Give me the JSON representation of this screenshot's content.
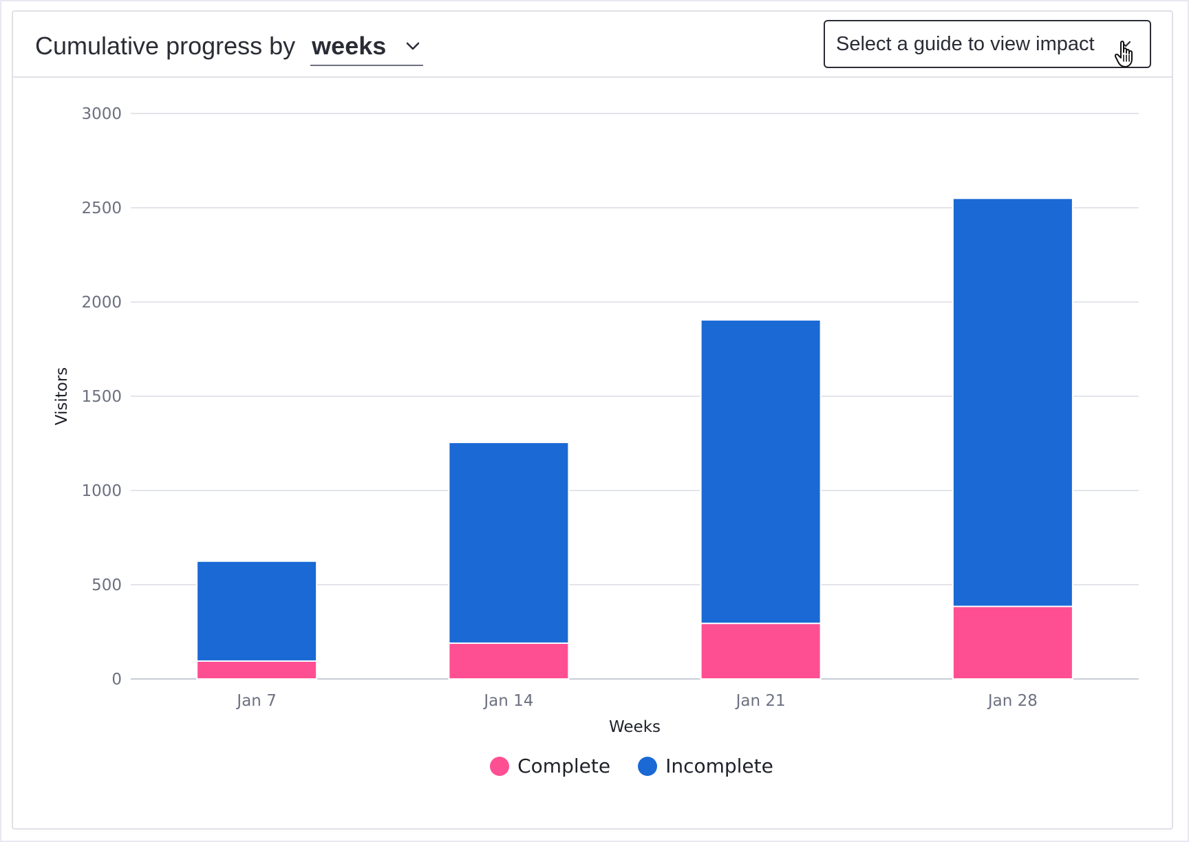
{
  "header": {
    "title_prefix": "Cumulative progress by ",
    "period_value": "weeks",
    "guide_placeholder": "Select a guide to view impact"
  },
  "icons": {
    "period_dropdown": "chevron-down-icon",
    "guide_dropdown": "chevron-down-icon",
    "cursor": "hand-pointer-icon"
  },
  "colors": {
    "complete": "#ff4f93",
    "incomplete": "#1a69d4"
  },
  "chart_data": {
    "type": "bar",
    "stacked": true,
    "title": "Cumulative progress by weeks",
    "xlabel": "Weeks",
    "ylabel": "Visitors",
    "categories": [
      "Jan 7",
      "Jan 14",
      "Jan 21",
      "Jan 28"
    ],
    "series": [
      {
        "name": "Complete",
        "values": [
          95,
          190,
          295,
          385
        ],
        "color": "#ff4f93"
      },
      {
        "name": "Incomplete",
        "values": [
          530,
          1065,
          1610,
          2165
        ],
        "color": "#1a69d4"
      }
    ],
    "ylim": [
      0,
      3000
    ],
    "yticks": [
      0,
      500,
      1000,
      1500,
      2000,
      2500,
      3000
    ],
    "grid": true,
    "legend": "bottom-center"
  }
}
